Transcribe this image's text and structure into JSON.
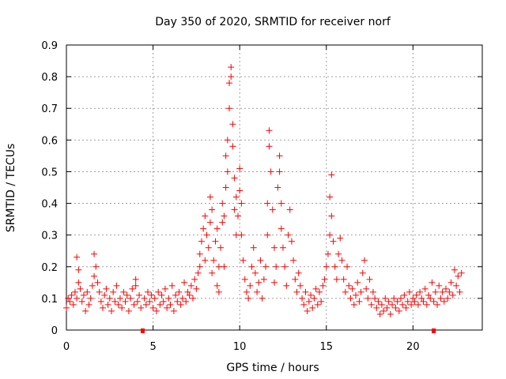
{
  "chart_data": {
    "type": "scatter",
    "title": "Day 350 of 2020, SRMTID for receiver norf",
    "xlabel": "GPS time / hours",
    "ylabel": "SRMTID / TECUs",
    "xlim": [
      0,
      24
    ],
    "ylim": [
      0,
      0.9
    ],
    "x_ticks": [
      0,
      5,
      10,
      15,
      20
    ],
    "x_tick_labels": [
      "0",
      "5",
      "10",
      "15",
      "20"
    ],
    "y_ticks": [
      0,
      0.1,
      0.2,
      0.3,
      0.4,
      0.5,
      0.6,
      0.7,
      0.8,
      0.9
    ],
    "y_tick_labels": [
      "0",
      "0.1",
      "0.2",
      "0.3",
      "0.4",
      "0.5",
      "0.6",
      "0.7",
      "0.8",
      "0.9"
    ],
    "grid": true,
    "marker": "+",
    "color": "#ff0000",
    "bottom_markers_x": [
      4.4,
      21.2
    ],
    "series": [
      {
        "name": "SRMTID",
        "points": [
          [
            0.0,
            0.07
          ],
          [
            0.1,
            0.1
          ],
          [
            0.2,
            0.09
          ],
          [
            0.3,
            0.11
          ],
          [
            0.4,
            0.08
          ],
          [
            0.5,
            0.12
          ],
          [
            0.6,
            0.1
          ],
          [
            0.6,
            0.23
          ],
          [
            0.7,
            0.15
          ],
          [
            0.7,
            0.19
          ],
          [
            0.8,
            0.13
          ],
          [
            0.9,
            0.09
          ],
          [
            1.0,
            0.11
          ],
          [
            1.1,
            0.06
          ],
          [
            1.2,
            0.12
          ],
          [
            1.3,
            0.08
          ],
          [
            1.4,
            0.1
          ],
          [
            1.5,
            0.14
          ],
          [
            1.6,
            0.17
          ],
          [
            1.6,
            0.24
          ],
          [
            1.7,
            0.2
          ],
          [
            1.8,
            0.15
          ],
          [
            1.9,
            0.12
          ],
          [
            2.0,
            0.09
          ],
          [
            2.1,
            0.07
          ],
          [
            2.2,
            0.11
          ],
          [
            2.3,
            0.13
          ],
          [
            2.4,
            0.08
          ],
          [
            2.5,
            0.1
          ],
          [
            2.6,
            0.06
          ],
          [
            2.7,
            0.12
          ],
          [
            2.8,
            0.09
          ],
          [
            2.9,
            0.14
          ],
          [
            3.0,
            0.08
          ],
          [
            3.1,
            0.1
          ],
          [
            3.2,
            0.07
          ],
          [
            3.3,
            0.12
          ],
          [
            3.4,
            0.09
          ],
          [
            3.5,
            0.11
          ],
          [
            3.6,
            0.06
          ],
          [
            3.7,
            0.1
          ],
          [
            3.8,
            0.13
          ],
          [
            3.9,
            0.08
          ],
          [
            4.0,
            0.14
          ],
          [
            4.0,
            0.16
          ],
          [
            4.1,
            0.09
          ],
          [
            4.2,
            0.11
          ],
          [
            4.3,
            0.07
          ],
          [
            4.5,
            0.1
          ],
          [
            4.6,
            0.08
          ],
          [
            4.7,
            0.12
          ],
          [
            4.8,
            0.09
          ],
          [
            4.9,
            0.11
          ],
          [
            5.0,
            0.07
          ],
          [
            5.1,
            0.1
          ],
          [
            5.2,
            0.06
          ],
          [
            5.3,
            0.12
          ],
          [
            5.4,
            0.08
          ],
          [
            5.5,
            0.11
          ],
          [
            5.6,
            0.09
          ],
          [
            5.7,
            0.13
          ],
          [
            5.8,
            0.07
          ],
          [
            5.9,
            0.1
          ],
          [
            6.0,
            0.08
          ],
          [
            6.1,
            0.14
          ],
          [
            6.2,
            0.06
          ],
          [
            6.3,
            0.11
          ],
          [
            6.4,
            0.09
          ],
          [
            6.5,
            0.12
          ],
          [
            6.6,
            0.08
          ],
          [
            6.7,
            0.1
          ],
          [
            6.8,
            0.15
          ],
          [
            6.9,
            0.09
          ],
          [
            7.0,
            0.12
          ],
          [
            7.1,
            0.11
          ],
          [
            7.2,
            0.14
          ],
          [
            7.3,
            0.1
          ],
          [
            7.4,
            0.16
          ],
          [
            7.5,
            0.13
          ],
          [
            7.6,
            0.18
          ],
          [
            7.7,
            0.2
          ],
          [
            7.7,
            0.24
          ],
          [
            7.8,
            0.28
          ],
          [
            7.9,
            0.32
          ],
          [
            8.0,
            0.36
          ],
          [
            8.0,
            0.22
          ],
          [
            8.1,
            0.3
          ],
          [
            8.2,
            0.26
          ],
          [
            8.3,
            0.34
          ],
          [
            8.3,
            0.42
          ],
          [
            8.4,
            0.38
          ],
          [
            8.4,
            0.18
          ],
          [
            8.5,
            0.22
          ],
          [
            8.6,
            0.28
          ],
          [
            8.7,
            0.32
          ],
          [
            8.7,
            0.14
          ],
          [
            8.8,
            0.2
          ],
          [
            8.8,
            0.12
          ],
          [
            8.9,
            0.26
          ],
          [
            9.0,
            0.34
          ],
          [
            9.0,
            0.4
          ],
          [
            9.1,
            0.36
          ],
          [
            9.1,
            0.2
          ],
          [
            9.2,
            0.45
          ],
          [
            9.2,
            0.55
          ],
          [
            9.3,
            0.6
          ],
          [
            9.3,
            0.5
          ],
          [
            9.4,
            0.7
          ],
          [
            9.4,
            0.78
          ],
          [
            9.5,
            0.8
          ],
          [
            9.5,
            0.83
          ],
          [
            9.6,
            0.65
          ],
          [
            9.6,
            0.58
          ],
          [
            9.7,
            0.48
          ],
          [
            9.7,
            0.38
          ],
          [
            9.8,
            0.42
          ],
          [
            9.8,
            0.3
          ],
          [
            9.9,
            0.36
          ],
          [
            10.0,
            0.44
          ],
          [
            10.0,
            0.51
          ],
          [
            10.1,
            0.4
          ],
          [
            10.1,
            0.3
          ],
          [
            10.2,
            0.22
          ],
          [
            10.3,
            0.16
          ],
          [
            10.4,
            0.12
          ],
          [
            10.5,
            0.1
          ],
          [
            10.6,
            0.14
          ],
          [
            10.7,
            0.2
          ],
          [
            10.8,
            0.26
          ],
          [
            10.9,
            0.18
          ],
          [
            11.0,
            0.12
          ],
          [
            11.1,
            0.15
          ],
          [
            11.2,
            0.22
          ],
          [
            11.3,
            0.1
          ],
          [
            11.4,
            0.16
          ],
          [
            11.5,
            0.2
          ],
          [
            11.6,
            0.3
          ],
          [
            11.6,
            0.4
          ],
          [
            11.7,
            0.58
          ],
          [
            11.7,
            0.63
          ],
          [
            11.8,
            0.5
          ],
          [
            11.9,
            0.38
          ],
          [
            12.0,
            0.26
          ],
          [
            12.0,
            0.15
          ],
          [
            12.1,
            0.2
          ],
          [
            12.2,
            0.45
          ],
          [
            12.3,
            0.55
          ],
          [
            12.3,
            0.5
          ],
          [
            12.4,
            0.4
          ],
          [
            12.4,
            0.32
          ],
          [
            12.5,
            0.26
          ],
          [
            12.6,
            0.2
          ],
          [
            12.7,
            0.14
          ],
          [
            12.8,
            0.3
          ],
          [
            12.9,
            0.38
          ],
          [
            13.0,
            0.28
          ],
          [
            13.1,
            0.22
          ],
          [
            13.2,
            0.16
          ],
          [
            13.3,
            0.12
          ],
          [
            13.4,
            0.18
          ],
          [
            13.5,
            0.14
          ],
          [
            13.6,
            0.1
          ],
          [
            13.7,
            0.08
          ],
          [
            13.8,
            0.12
          ],
          [
            13.9,
            0.06
          ],
          [
            14.0,
            0.09
          ],
          [
            14.1,
            0.11
          ],
          [
            14.2,
            0.07
          ],
          [
            14.3,
            0.1
          ],
          [
            14.4,
            0.13
          ],
          [
            14.5,
            0.08
          ],
          [
            14.6,
            0.12
          ],
          [
            14.7,
            0.09
          ],
          [
            14.8,
            0.14
          ],
          [
            14.9,
            0.16
          ],
          [
            15.0,
            0.2
          ],
          [
            15.1,
            0.24
          ],
          [
            15.2,
            0.3
          ],
          [
            15.2,
            0.42
          ],
          [
            15.3,
            0.49
          ],
          [
            15.3,
            0.36
          ],
          [
            15.4,
            0.28
          ],
          [
            15.5,
            0.2
          ],
          [
            15.6,
            0.16
          ],
          [
            15.7,
            0.24
          ],
          [
            15.8,
            0.29
          ],
          [
            15.9,
            0.22
          ],
          [
            16.0,
            0.16
          ],
          [
            16.1,
            0.12
          ],
          [
            16.2,
            0.2
          ],
          [
            16.3,
            0.14
          ],
          [
            16.4,
            0.1
          ],
          [
            16.5,
            0.13
          ],
          [
            16.6,
            0.08
          ],
          [
            16.7,
            0.11
          ],
          [
            16.8,
            0.15
          ],
          [
            16.9,
            0.09
          ],
          [
            17.0,
            0.12
          ],
          [
            17.1,
            0.18
          ],
          [
            17.2,
            0.22
          ],
          [
            17.3,
            0.13
          ],
          [
            17.4,
            0.1
          ],
          [
            17.5,
            0.16
          ],
          [
            17.6,
            0.08
          ],
          [
            17.7,
            0.12
          ],
          [
            17.8,
            0.1
          ],
          [
            17.9,
            0.07
          ],
          [
            18.0,
            0.09
          ],
          [
            18.1,
            0.05
          ],
          [
            18.2,
            0.08
          ],
          [
            18.3,
            0.06
          ],
          [
            18.4,
            0.1
          ],
          [
            18.5,
            0.07
          ],
          [
            18.6,
            0.09
          ],
          [
            18.7,
            0.05
          ],
          [
            18.8,
            0.08
          ],
          [
            18.9,
            0.1
          ],
          [
            19.0,
            0.07
          ],
          [
            19.1,
            0.09
          ],
          [
            19.2,
            0.06
          ],
          [
            19.3,
            0.1
          ],
          [
            19.4,
            0.08
          ],
          [
            19.5,
            0.11
          ],
          [
            19.6,
            0.07
          ],
          [
            19.7,
            0.09
          ],
          [
            19.8,
            0.12
          ],
          [
            19.9,
            0.08
          ],
          [
            20.0,
            0.1
          ],
          [
            20.1,
            0.09
          ],
          [
            20.2,
            0.11
          ],
          [
            20.3,
            0.08
          ],
          [
            20.4,
            0.12
          ],
          [
            20.5,
            0.1
          ],
          [
            20.6,
            0.09
          ],
          [
            20.7,
            0.13
          ],
          [
            20.8,
            0.08
          ],
          [
            20.9,
            0.11
          ],
          [
            21.0,
            0.1
          ],
          [
            21.1,
            0.15
          ],
          [
            21.2,
            0.09
          ],
          [
            21.3,
            0.12
          ],
          [
            21.4,
            0.08
          ],
          [
            21.5,
            0.14
          ],
          [
            21.6,
            0.1
          ],
          [
            21.7,
            0.12
          ],
          [
            21.8,
            0.09
          ],
          [
            21.9,
            0.13
          ],
          [
            22.0,
            0.1
          ],
          [
            22.1,
            0.12
          ],
          [
            22.2,
            0.15
          ],
          [
            22.3,
            0.11
          ],
          [
            22.4,
            0.19
          ],
          [
            22.5,
            0.14
          ],
          [
            22.6,
            0.17
          ],
          [
            22.7,
            0.12
          ],
          [
            22.8,
            0.18
          ]
        ]
      }
    ]
  }
}
